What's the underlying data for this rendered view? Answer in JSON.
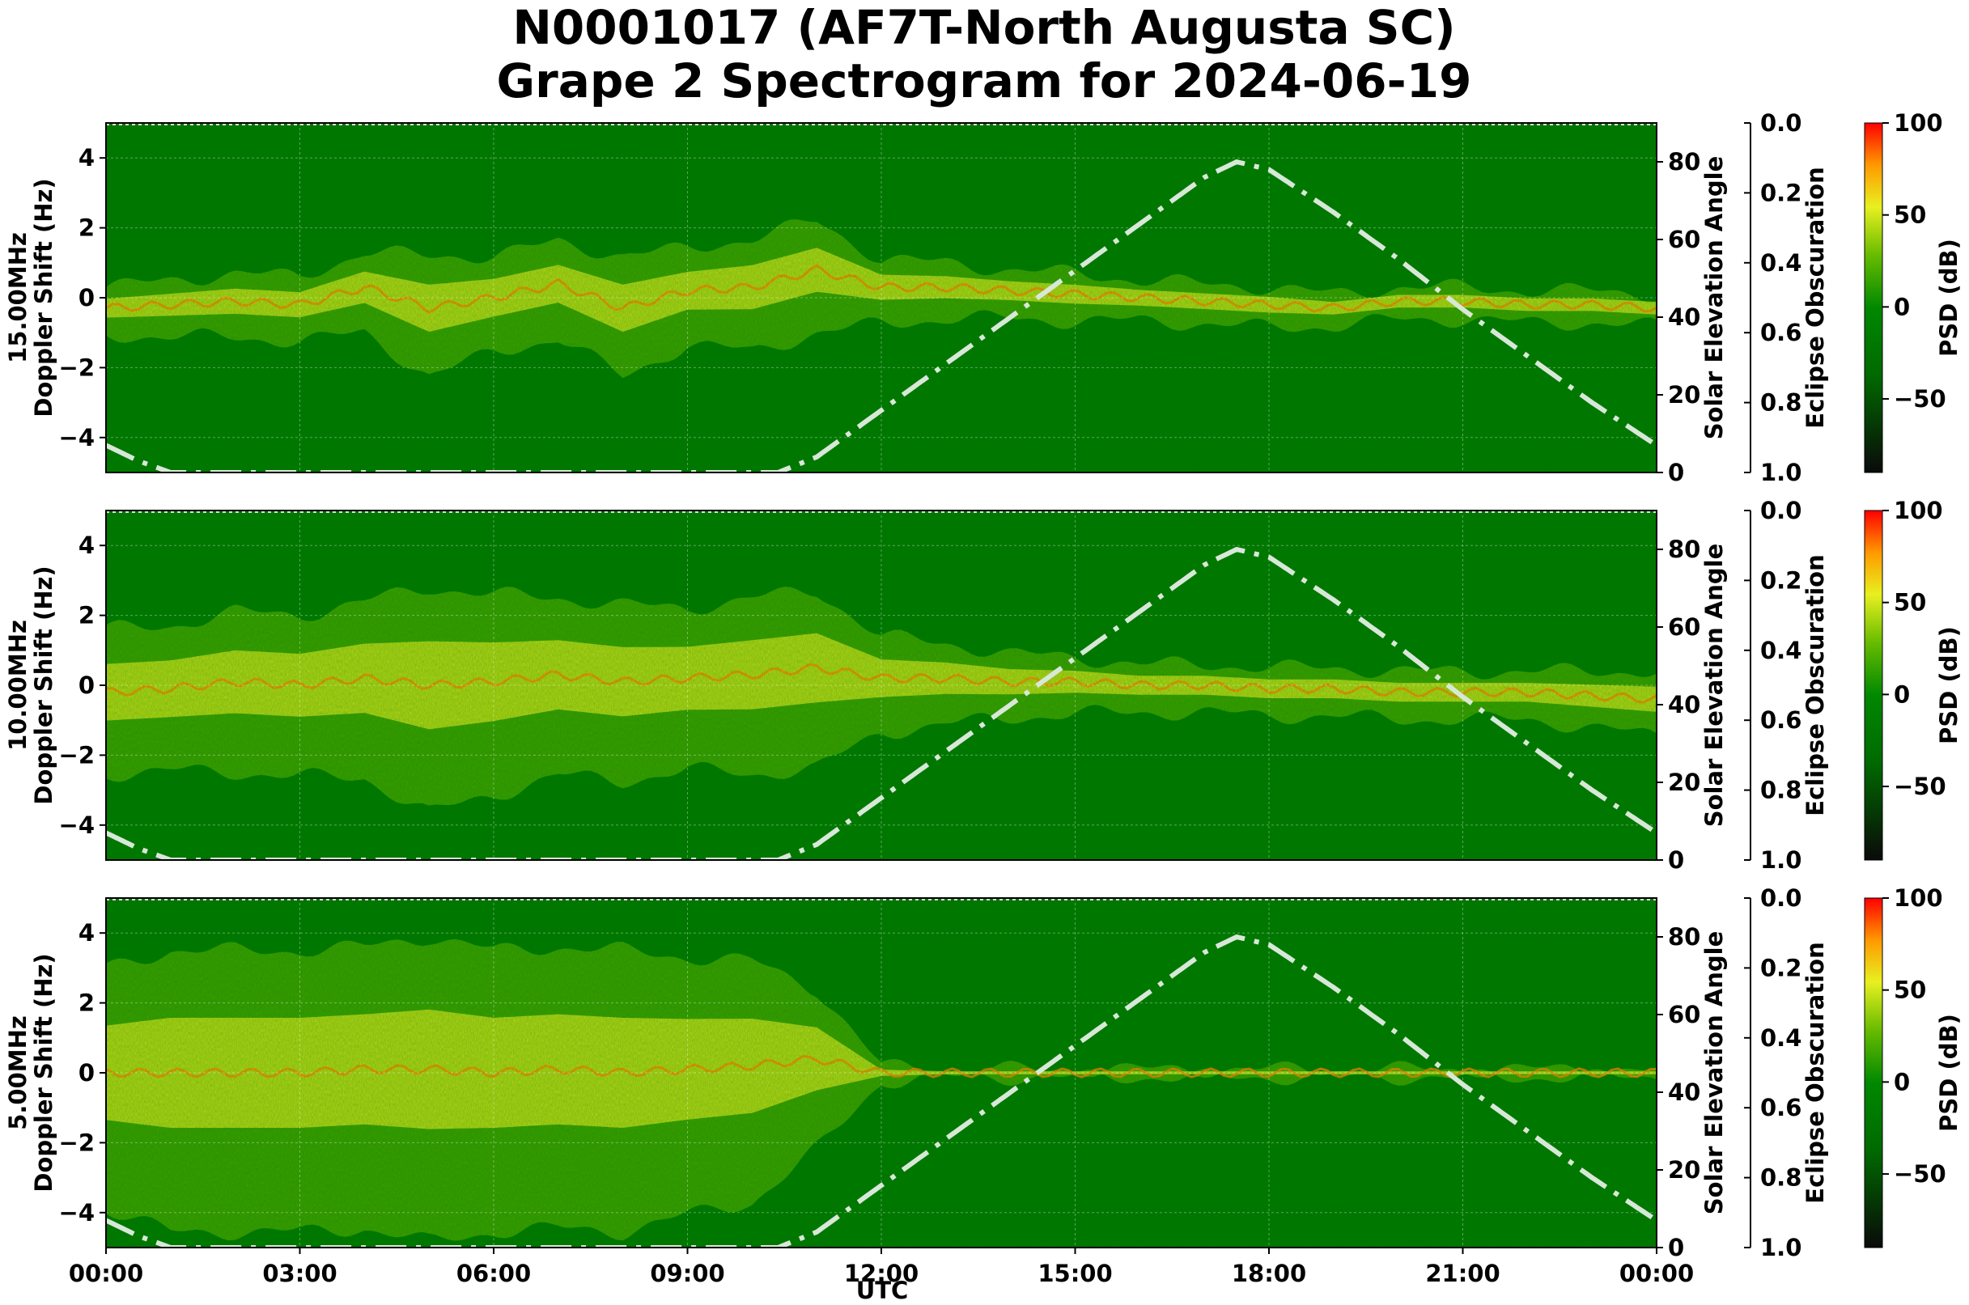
{
  "title": {
    "line1": "N0001017 (AF7T-North Augusta SC)",
    "line2": "Grape 2 Spectrogram for 2024-06-19"
  },
  "xaxis": {
    "label": "UTC",
    "ticks": [
      "00:00",
      "03:00",
      "06:00",
      "09:00",
      "12:00",
      "15:00",
      "18:00",
      "21:00",
      "00:00"
    ]
  },
  "colors": {
    "background_green": "#007a00",
    "trace_yellow": "#e8f020",
    "trace_orange": "#ff8800",
    "solar_line": "#d8e8d8",
    "colorbar_stops": [
      "#0a0a0a",
      "#007a00",
      "#7fc800",
      "#ffff00",
      "#ff7f00",
      "#ff0000"
    ]
  },
  "chart_data": [
    {
      "type": "heatmap",
      "ylabel_freq": "15.00MHz",
      "ylabel": "Doppler Shift (Hz)",
      "ylim": [
        -5,
        5
      ],
      "yticks": [
        "4",
        "2",
        "0",
        "−2",
        "−4"
      ],
      "right_axis_label": "Solar Elevation Angle",
      "right_ylim": [
        0,
        90
      ],
      "right_yticks": [
        "80",
        "60",
        "40",
        "20",
        "0"
      ],
      "eclipse_label": "Eclipse Obscuration",
      "eclipse_ylim": [
        1.0,
        0.0
      ],
      "eclipse_ticks": [
        "0.0",
        "0.2",
        "0.4",
        "0.6",
        "0.8",
        "1.0"
      ],
      "colorbar_label": "PSD (dB)",
      "colorbar_ticks": [
        "100",
        "50",
        "0",
        "−50"
      ],
      "colorbar_range": [
        -90,
        100
      ],
      "doppler_trace_hours": [
        0,
        1,
        2,
        3,
        4,
        5,
        6,
        7,
        8,
        9,
        10,
        11,
        12,
        13,
        14,
        15,
        16,
        17,
        18,
        19,
        20,
        21,
        22,
        23,
        24
      ],
      "doppler_trace_hz": [
        -0.3,
        -0.2,
        -0.1,
        -0.2,
        0.3,
        -0.3,
        0.0,
        0.4,
        -0.3,
        0.2,
        0.3,
        0.8,
        0.3,
        0.3,
        0.2,
        0.1,
        0.0,
        -0.1,
        -0.2,
        -0.3,
        -0.1,
        -0.1,
        -0.2,
        -0.2,
        -0.3
      ],
      "spread_hz": [
        0.6,
        0.7,
        0.8,
        0.8,
        1.0,
        1.5,
        1.2,
        1.2,
        1.5,
        1.2,
        1.4,
        1.4,
        0.8,
        0.7,
        0.6,
        0.6,
        0.5,
        0.5,
        0.5,
        0.4,
        0.4,
        0.4,
        0.4,
        0.4,
        0.4
      ]
    },
    {
      "type": "heatmap",
      "ylabel_freq": "10.00MHz",
      "ylabel": "Doppler Shift (Hz)",
      "ylim": [
        -5,
        5
      ],
      "yticks": [
        "4",
        "2",
        "0",
        "−2",
        "−4"
      ],
      "right_axis_label": "Solar Elevation Angle",
      "right_ylim": [
        0,
        90
      ],
      "right_yticks": [
        "80",
        "60",
        "40",
        "20",
        "0"
      ],
      "eclipse_label": "Eclipse Obscuration",
      "eclipse_ylim": [
        1.0,
        0.0
      ],
      "eclipse_ticks": [
        "0.0",
        "0.2",
        "0.4",
        "0.6",
        "0.8",
        "1.0"
      ],
      "colorbar_label": "PSD (dB)",
      "colorbar_ticks": [
        "100",
        "50",
        "0",
        "−50"
      ],
      "colorbar_range": [
        -90,
        100
      ],
      "doppler_trace_hours": [
        0,
        1,
        2,
        3,
        4,
        5,
        6,
        7,
        8,
        9,
        10,
        11,
        12,
        13,
        14,
        15,
        16,
        17,
        18,
        19,
        20,
        21,
        22,
        23,
        24
      ],
      "doppler_trace_hz": [
        -0.2,
        -0.1,
        0.1,
        0.0,
        0.2,
        0.0,
        0.1,
        0.3,
        0.1,
        0.2,
        0.3,
        0.5,
        0.2,
        0.2,
        0.1,
        0.1,
        0.0,
        0.0,
        -0.1,
        -0.1,
        -0.2,
        -0.2,
        -0.2,
        -0.3,
        -0.4
      ],
      "spread_hz": [
        1.8,
        1.8,
        2.0,
        2.0,
        2.2,
        2.8,
        2.5,
        2.2,
        2.2,
        2.0,
        2.2,
        2.2,
        1.2,
        1.0,
        0.8,
        0.7,
        0.6,
        0.6,
        0.6,
        0.6,
        0.6,
        0.6,
        0.6,
        0.7,
        0.8
      ]
    },
    {
      "type": "heatmap",
      "ylabel_freq": "5.00MHz",
      "ylabel": "Doppler Shift (Hz)",
      "ylim": [
        -5,
        5
      ],
      "yticks": [
        "4",
        "2",
        "0",
        "−2",
        "−4"
      ],
      "right_axis_label": "Solar Elevation Angle",
      "right_ylim": [
        0,
        90
      ],
      "right_yticks": [
        "80",
        "60",
        "40",
        "20",
        "0"
      ],
      "eclipse_label": "Eclipse Obscuration",
      "eclipse_ylim": [
        1.0,
        0.0
      ],
      "eclipse_ticks": [
        "0.0",
        "0.2",
        "0.4",
        "0.6",
        "0.8",
        "1.0"
      ],
      "colorbar_label": "PSD (dB)",
      "colorbar_ticks": [
        "100",
        "50",
        "0",
        "−50"
      ],
      "colorbar_range": [
        -90,
        100
      ],
      "doppler_trace_hours": [
        0,
        1,
        2,
        3,
        4,
        5,
        6,
        7,
        8,
        9,
        10,
        11,
        12,
        13,
        14,
        15,
        16,
        17,
        18,
        19,
        20,
        21,
        22,
        23,
        24
      ],
      "doppler_trace_hz": [
        0.0,
        0.0,
        0.0,
        0.0,
        0.1,
        0.1,
        0.0,
        0.1,
        0.0,
        0.1,
        0.2,
        0.4,
        0.0,
        0.0,
        0.0,
        0.0,
        0.0,
        0.0,
        0.0,
        0.0,
        0.0,
        0.0,
        0.0,
        0.0,
        0.0
      ],
      "spread_hz": [
        3.0,
        3.5,
        3.5,
        3.5,
        3.5,
        3.8,
        3.5,
        3.5,
        3.5,
        3.2,
        3.0,
        2.0,
        0.2,
        0.1,
        0.1,
        0.1,
        0.1,
        0.1,
        0.1,
        0.1,
        0.1,
        0.1,
        0.1,
        0.1,
        0.1
      ]
    }
  ],
  "solar_elevation": {
    "hours": [
      0,
      0.5,
      1,
      1.5,
      2,
      3,
      4,
      5,
      6,
      7,
      8,
      9,
      10,
      10.4,
      11,
      12,
      13,
      14,
      15,
      16,
      17,
      17.5,
      18,
      19,
      20,
      21,
      22,
      23,
      24
    ],
    "degrees": [
      7,
      3,
      0,
      0,
      0,
      0,
      0,
      0,
      0,
      0,
      0,
      0,
      0,
      0,
      4,
      16,
      28,
      40,
      52,
      64,
      76,
      80,
      78,
      67,
      55,
      42,
      30,
      18,
      7
    ]
  }
}
